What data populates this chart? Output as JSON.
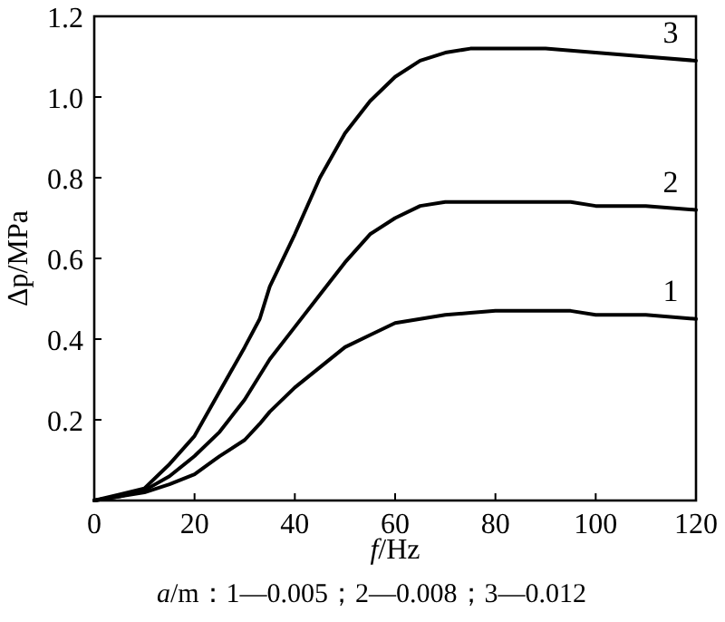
{
  "chart_data": {
    "type": "line",
    "xlabel": "*f*/Hz",
    "ylabel": "Δp/MPa",
    "annotations": [
      "*a*/m：1—0.005；2—0.008；3—0.012"
    ],
    "xlim": [
      0,
      120
    ],
    "ylim": [
      0,
      1.2
    ],
    "xticks": [
      0,
      20,
      40,
      60,
      80,
      100,
      120
    ],
    "yticks": [
      0.2,
      0.4,
      0.6,
      0.8,
      {
        "value": 1.0,
        "label": "1.0"
      },
      1.2
    ],
    "grid": false,
    "marker": "none",
    "line_style": "solid",
    "x": [
      0,
      5,
      10,
      15,
      20,
      25,
      30,
      33,
      35,
      40,
      45,
      50,
      55,
      60,
      65,
      70,
      75,
      80,
      90,
      95,
      100,
      110,
      120
    ],
    "series": [
      {
        "name": "1",
        "color": "#000000",
        "values": [
          0,
          0.01,
          0.02,
          0.04,
          0.065,
          0.11,
          0.15,
          0.19,
          0.22,
          0.28,
          0.33,
          0.38,
          0.41,
          0.44,
          0.45,
          0.46,
          0.465,
          0.47,
          0.47,
          0.47,
          0.46,
          0.46,
          0.45
        ]
      },
      {
        "name": "2",
        "color": "#000000",
        "values": [
          0,
          0.01,
          0.025,
          0.06,
          0.11,
          0.17,
          0.25,
          0.31,
          0.35,
          0.43,
          0.51,
          0.59,
          0.66,
          0.7,
          0.73,
          0.74,
          0.74,
          0.74,
          0.74,
          0.74,
          0.73,
          0.73,
          0.72
        ]
      },
      {
        "name": "3",
        "color": "#000000",
        "values": [
          0,
          0.015,
          0.03,
          0.09,
          0.16,
          0.27,
          0.38,
          0.45,
          0.53,
          0.66,
          0.8,
          0.91,
          0.99,
          1.05,
          1.09,
          1.11,
          1.12,
          1.12,
          1.12,
          1.115,
          1.11,
          1.1,
          1.09
        ]
      }
    ]
  }
}
